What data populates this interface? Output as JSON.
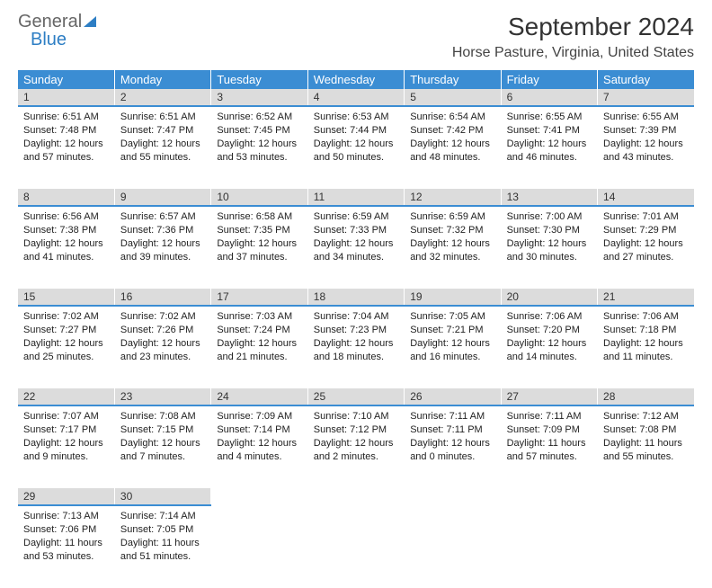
{
  "logo": {
    "general": "General",
    "blue": "Blue"
  },
  "title": "September 2024",
  "location": "Horse Pasture, Virginia, United States",
  "headers": [
    "Sunday",
    "Monday",
    "Tuesday",
    "Wednesday",
    "Thursday",
    "Friday",
    "Saturday"
  ],
  "styles": {
    "header_bg": "#3b8dd3",
    "header_fg": "#ffffff",
    "daynum_bg": "#dcdcdc",
    "daynum_border": "#3b8dd3",
    "body_fontsize": 11,
    "header_fontsize": 13,
    "title_fontsize": 28,
    "location_fontsize": 16
  },
  "weeks": [
    [
      {
        "n": "1",
        "sr": "6:51 AM",
        "ss": "7:48 PM",
        "dl": "12 hours and 57 minutes."
      },
      {
        "n": "2",
        "sr": "6:51 AM",
        "ss": "7:47 PM",
        "dl": "12 hours and 55 minutes."
      },
      {
        "n": "3",
        "sr": "6:52 AM",
        "ss": "7:45 PM",
        "dl": "12 hours and 53 minutes."
      },
      {
        "n": "4",
        "sr": "6:53 AM",
        "ss": "7:44 PM",
        "dl": "12 hours and 50 minutes."
      },
      {
        "n": "5",
        "sr": "6:54 AM",
        "ss": "7:42 PM",
        "dl": "12 hours and 48 minutes."
      },
      {
        "n": "6",
        "sr": "6:55 AM",
        "ss": "7:41 PM",
        "dl": "12 hours and 46 minutes."
      },
      {
        "n": "7",
        "sr": "6:55 AM",
        "ss": "7:39 PM",
        "dl": "12 hours and 43 minutes."
      }
    ],
    [
      {
        "n": "8",
        "sr": "6:56 AM",
        "ss": "7:38 PM",
        "dl": "12 hours and 41 minutes."
      },
      {
        "n": "9",
        "sr": "6:57 AM",
        "ss": "7:36 PM",
        "dl": "12 hours and 39 minutes."
      },
      {
        "n": "10",
        "sr": "6:58 AM",
        "ss": "7:35 PM",
        "dl": "12 hours and 37 minutes."
      },
      {
        "n": "11",
        "sr": "6:59 AM",
        "ss": "7:33 PM",
        "dl": "12 hours and 34 minutes."
      },
      {
        "n": "12",
        "sr": "6:59 AM",
        "ss": "7:32 PM",
        "dl": "12 hours and 32 minutes."
      },
      {
        "n": "13",
        "sr": "7:00 AM",
        "ss": "7:30 PM",
        "dl": "12 hours and 30 minutes."
      },
      {
        "n": "14",
        "sr": "7:01 AM",
        "ss": "7:29 PM",
        "dl": "12 hours and 27 minutes."
      }
    ],
    [
      {
        "n": "15",
        "sr": "7:02 AM",
        "ss": "7:27 PM",
        "dl": "12 hours and 25 minutes."
      },
      {
        "n": "16",
        "sr": "7:02 AM",
        "ss": "7:26 PM",
        "dl": "12 hours and 23 minutes."
      },
      {
        "n": "17",
        "sr": "7:03 AM",
        "ss": "7:24 PM",
        "dl": "12 hours and 21 minutes."
      },
      {
        "n": "18",
        "sr": "7:04 AM",
        "ss": "7:23 PM",
        "dl": "12 hours and 18 minutes."
      },
      {
        "n": "19",
        "sr": "7:05 AM",
        "ss": "7:21 PM",
        "dl": "12 hours and 16 minutes."
      },
      {
        "n": "20",
        "sr": "7:06 AM",
        "ss": "7:20 PM",
        "dl": "12 hours and 14 minutes."
      },
      {
        "n": "21",
        "sr": "7:06 AM",
        "ss": "7:18 PM",
        "dl": "12 hours and 11 minutes."
      }
    ],
    [
      {
        "n": "22",
        "sr": "7:07 AM",
        "ss": "7:17 PM",
        "dl": "12 hours and 9 minutes."
      },
      {
        "n": "23",
        "sr": "7:08 AM",
        "ss": "7:15 PM",
        "dl": "12 hours and 7 minutes."
      },
      {
        "n": "24",
        "sr": "7:09 AM",
        "ss": "7:14 PM",
        "dl": "12 hours and 4 minutes."
      },
      {
        "n": "25",
        "sr": "7:10 AM",
        "ss": "7:12 PM",
        "dl": "12 hours and 2 minutes."
      },
      {
        "n": "26",
        "sr": "7:11 AM",
        "ss": "7:11 PM",
        "dl": "12 hours and 0 minutes."
      },
      {
        "n": "27",
        "sr": "7:11 AM",
        "ss": "7:09 PM",
        "dl": "11 hours and 57 minutes."
      },
      {
        "n": "28",
        "sr": "7:12 AM",
        "ss": "7:08 PM",
        "dl": "11 hours and 55 minutes."
      }
    ],
    [
      {
        "n": "29",
        "sr": "7:13 AM",
        "ss": "7:06 PM",
        "dl": "11 hours and 53 minutes."
      },
      {
        "n": "30",
        "sr": "7:14 AM",
        "ss": "7:05 PM",
        "dl": "11 hours and 51 minutes."
      },
      null,
      null,
      null,
      null,
      null
    ]
  ]
}
